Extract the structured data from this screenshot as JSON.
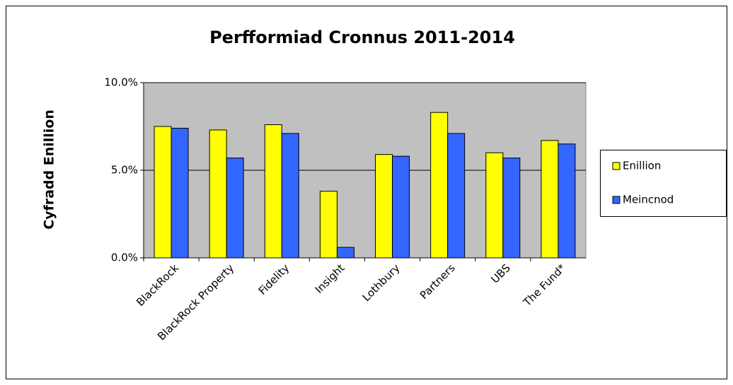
{
  "chart_data": {
    "type": "bar",
    "title": "Perfformiad Cronnus 2011-2014",
    "y_label": "Cyfradd Enillion",
    "categories": [
      "BlackRock",
      "BlackRock Property",
      "Fidelity",
      "Insight",
      "Lothbury",
      "Partners",
      "UBS",
      "The Fund*"
    ],
    "series": [
      {
        "name": "Enillion",
        "color": "#ffff00",
        "values": [
          7.5,
          7.3,
          7.6,
          3.8,
          5.9,
          8.3,
          6.0,
          6.7
        ]
      },
      {
        "name": "Meincnod",
        "color": "#3366ff",
        "values": [
          7.4,
          5.7,
          7.1,
          0.6,
          5.8,
          7.1,
          5.7,
          6.5
        ]
      }
    ],
    "ylim": [
      0,
      10
    ],
    "yticks": [
      {
        "value": 0,
        "label": "0.0%"
      },
      {
        "value": 5,
        "label": "5.0%"
      },
      {
        "value": 10,
        "label": "10.0%"
      }
    ],
    "grid": true,
    "legend": "right",
    "plot_background": "#c0c0c0"
  }
}
